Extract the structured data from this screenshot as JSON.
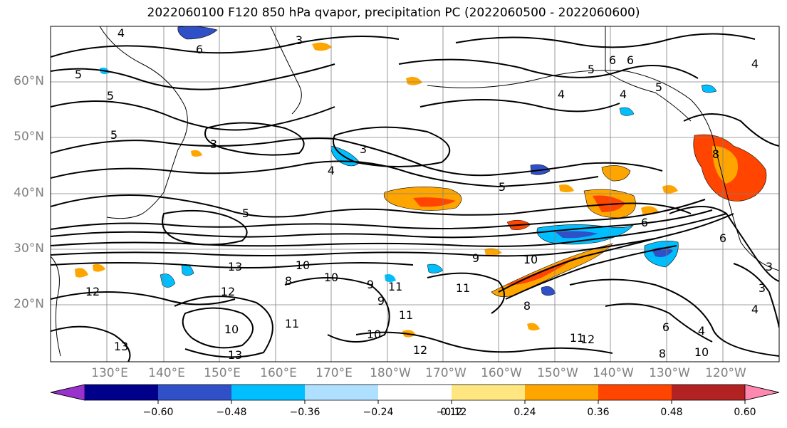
{
  "title": "2022060100 F120 850 hPa qvapor, precipitation PC (2022060500 - 2022060600)",
  "lat_labels": [
    "60°N",
    "50°N",
    "40°N",
    "30°N",
    "20°N"
  ],
  "lon_labels": [
    "130°E",
    "140°E",
    "150°E",
    "160°E",
    "170°E",
    "180°W",
    "170°W",
    "160°W",
    "150°W",
    "140°W",
    "130°W",
    "120°W"
  ],
  "contour_labels": [
    "3",
    "4",
    "5",
    "6",
    "8",
    "9",
    "10",
    "11",
    "12",
    "13"
  ],
  "colorbar": {
    "ticks": [
      "−0.60",
      "−0.48",
      "−0.36",
      "−0.24",
      "−0.12",
      "0.12",
      "0.24",
      "0.36",
      "0.48",
      "0.60"
    ],
    "colors": [
      "#9932cc",
      "#00008b",
      "#3050c8",
      "#00bfff",
      "#b0e0ff",
      "#ffffff",
      "#ffe680",
      "#ffa500",
      "#ff4500",
      "#b22222",
      "#ff88b0"
    ]
  },
  "colors": {
    "contour": "#000000",
    "grid": "#808080",
    "label": "#808080"
  }
}
